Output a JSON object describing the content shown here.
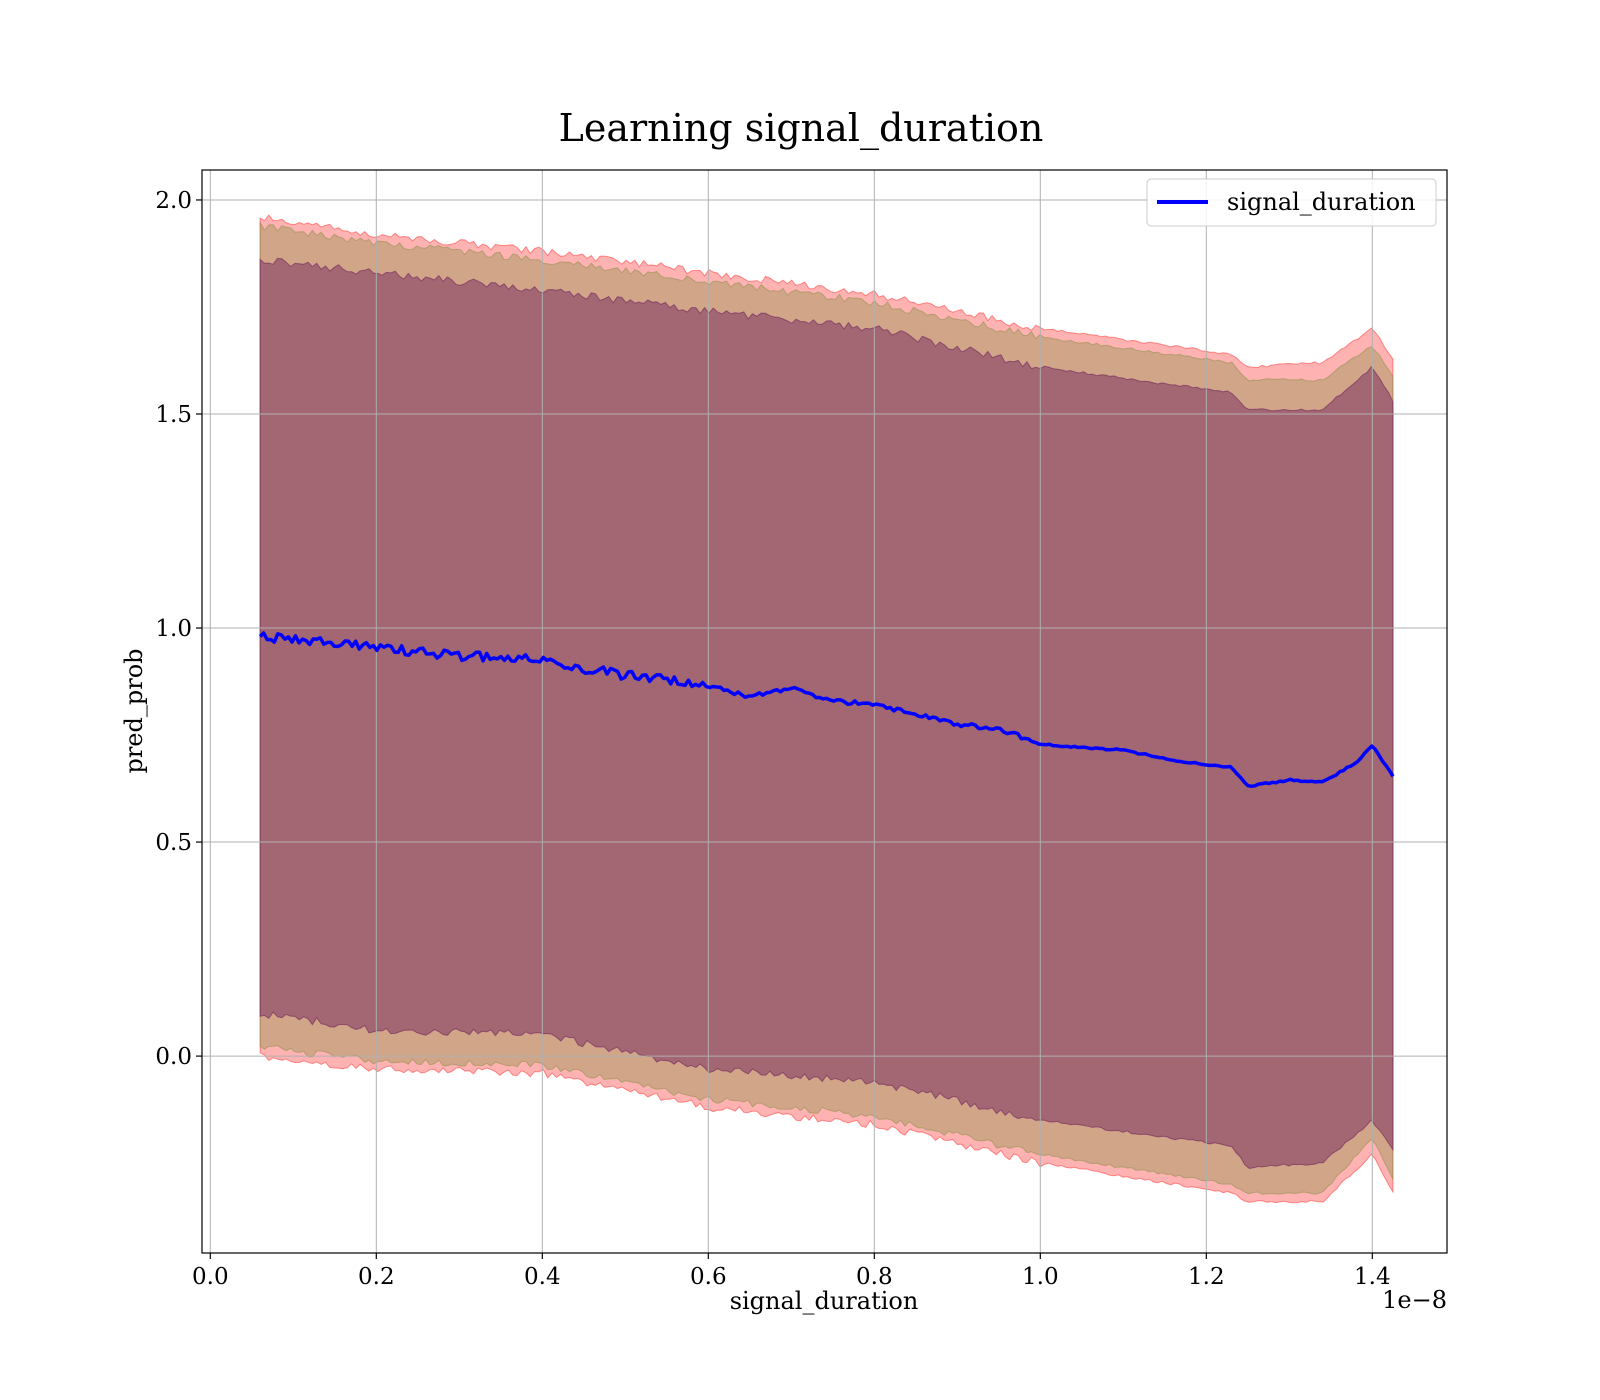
{
  "chart_data": {
    "type": "line",
    "title": "Learning signal_duration",
    "xlabel": "signal_duration",
    "ylabel": "pred_prob",
    "x_offset_text": "1e−8",
    "xlim": [
      -0.01,
      1.49
    ],
    "ylim": [
      -0.46,
      2.07
    ],
    "x_ticks": [
      0.0,
      0.2,
      0.4,
      0.6,
      0.8,
      1.0,
      1.2,
      1.4
    ],
    "x_tick_labels": [
      "0.0",
      "0.2",
      "0.4",
      "0.6",
      "0.8",
      "1.0",
      "1.2",
      "1.4"
    ],
    "y_ticks": [
      0.0,
      0.5,
      1.0,
      1.5,
      2.0
    ],
    "y_tick_labels": [
      "0.0",
      "0.5",
      "1.0",
      "1.5",
      "2.0"
    ],
    "grid": true,
    "legend": {
      "position": "top-right",
      "entries": [
        "signal_duration"
      ]
    },
    "series": [
      {
        "name": "signal_duration",
        "color": "#0000ff",
        "x": [
          0.06,
          0.1,
          0.15,
          0.2,
          0.25,
          0.3,
          0.35,
          0.4,
          0.45,
          0.5,
          0.55,
          0.6,
          0.65,
          0.7,
          0.75,
          0.8,
          0.85,
          0.9,
          0.95,
          1.0,
          1.05,
          1.1,
          1.15,
          1.2,
          1.23,
          1.25,
          1.3,
          1.34,
          1.35,
          1.38,
          1.4,
          1.425
        ],
        "y": [
          0.98,
          0.975,
          0.965,
          0.955,
          0.945,
          0.935,
          0.93,
          0.925,
          0.905,
          0.89,
          0.88,
          0.865,
          0.84,
          0.86,
          0.83,
          0.82,
          0.8,
          0.775,
          0.765,
          0.73,
          0.72,
          0.715,
          0.695,
          0.68,
          0.675,
          0.63,
          0.645,
          0.64,
          0.65,
          0.685,
          0.725,
          0.655
        ]
      }
    ],
    "bands": [
      {
        "color": "#ff0000",
        "opacity": 0.3,
        "x": [
          0.06,
          0.2,
          0.4,
          0.6,
          0.8,
          1.0,
          1.23,
          1.25,
          1.34,
          1.4,
          1.425
        ],
        "upper": [
          1.96,
          1.92,
          1.88,
          1.83,
          1.78,
          1.7,
          1.64,
          1.61,
          1.62,
          1.7,
          1.63
        ],
        "lower": [
          0.0,
          -0.03,
          -0.04,
          -0.12,
          -0.16,
          -0.25,
          -0.32,
          -0.34,
          -0.34,
          -0.23,
          -0.32
        ]
      },
      {
        "color": "#7a8c3a",
        "opacity": 0.35,
        "x": [
          0.06,
          0.2,
          0.4,
          0.6,
          0.8,
          1.0,
          1.23,
          1.25,
          1.34,
          1.4,
          1.425
        ],
        "upper": [
          1.94,
          1.9,
          1.86,
          1.81,
          1.76,
          1.68,
          1.62,
          1.58,
          1.58,
          1.66,
          1.59
        ],
        "lower": [
          0.02,
          -0.01,
          -0.02,
          -0.1,
          -0.14,
          -0.23,
          -0.3,
          -0.32,
          -0.32,
          -0.19,
          -0.29
        ]
      },
      {
        "color": "#6a1a5a",
        "opacity": 0.45,
        "x": [
          0.06,
          0.2,
          0.4,
          0.6,
          0.8,
          1.0,
          1.23,
          1.25,
          1.34,
          1.4,
          1.425
        ],
        "upper": [
          1.86,
          1.83,
          1.79,
          1.74,
          1.7,
          1.61,
          1.55,
          1.51,
          1.51,
          1.61,
          1.53
        ],
        "lower": [
          0.1,
          0.06,
          0.05,
          -0.03,
          -0.06,
          -0.15,
          -0.21,
          -0.26,
          -0.25,
          -0.15,
          -0.22
        ]
      }
    ]
  }
}
